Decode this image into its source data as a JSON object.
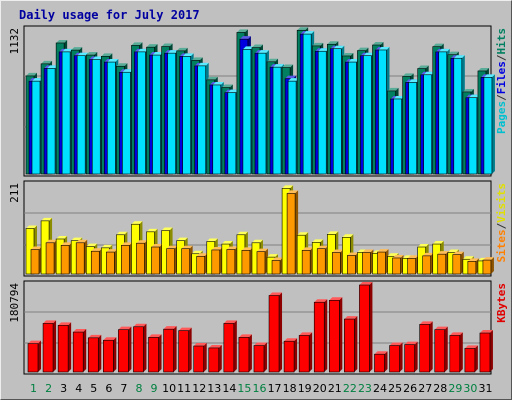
{
  "chart_data": [
    {
      "type": "bar",
      "title": "Daily usage for July 2017",
      "ymax_label": "1132",
      "axis_label_parts": [
        {
          "text": "Pages",
          "color": "#00C0D0"
        },
        {
          "text": "/",
          "color": "#333333"
        },
        {
          "text": "Files",
          "color": "#0000E0"
        },
        {
          "text": "/",
          "color": "#333333"
        },
        {
          "text": "Hits",
          "color": "#008060"
        }
      ],
      "ylim": [
        0,
        1132
      ],
      "series": [
        {
          "name": "Hits",
          "color": "#008060",
          "values": [
            771,
            866,
            1030,
            974,
            935,
            925,
            847,
            1011,
            997,
            1002,
            968,
            893,
            740,
            680,
            1113,
            994,
            882,
            837,
            1130,
            1007,
            1020,
            928,
            970,
            1014,
            653,
            767,
            829,
            1001,
            938,
            645,
            810
          ]
        },
        {
          "name": "Files",
          "color": "#0000E0",
          "values": [
            730,
            830,
            960,
            930,
            900,
            880,
            800,
            960,
            935,
            950,
            925,
            850,
            700,
            640,
            1060,
            950,
            840,
            750,
            1100,
            965,
            985,
            880,
            930,
            975,
            590,
            720,
            780,
            960,
            910,
            600,
            760
          ]
        },
        {
          "name": "Pages",
          "color": "#00E0FF",
          "values": [
            730,
            830,
            960,
            930,
            900,
            880,
            800,
            960,
            935,
            950,
            925,
            850,
            700,
            640,
            980,
            950,
            840,
            730,
            1100,
            965,
            985,
            880,
            930,
            975,
            590,
            720,
            780,
            960,
            910,
            600,
            760
          ]
        }
      ]
    },
    {
      "type": "bar",
      "ymax_label": "211",
      "axis_label_parts": [
        {
          "text": "Sites",
          "color": "#FF8000"
        },
        {
          "text": "/",
          "color": "#333333"
        },
        {
          "text": "Visits",
          "color": "#E0E000"
        }
      ],
      "ylim": [
        0,
        211
      ],
      "series": [
        {
          "name": "Visits",
          "color": "#FFFF00",
          "values": [
            108,
            126,
            83,
            79,
            65,
            62,
            93,
            118,
            100,
            103,
            79,
            48,
            77,
            71,
            93,
            74,
            40,
            203,
            92,
            75,
            94,
            87,
            51,
            49,
            42,
            37,
            64,
            71,
            51,
            35,
            31
          ]
        },
        {
          "name": "Sites",
          "color": "#FF9900",
          "values": [
            58,
            74,
            68,
            74,
            54,
            52,
            68,
            73,
            64,
            60,
            60,
            42,
            57,
            58,
            56,
            53,
            32,
            191,
            56,
            60,
            51,
            44,
            51,
            52,
            38,
            37,
            43,
            47,
            46,
            30,
            33
          ]
        }
      ]
    },
    {
      "type": "bar",
      "ymax_label": "180794",
      "axis_label_parts": [
        {
          "text": "KBytes",
          "color": "#E00000"
        }
      ],
      "ylim": [
        0,
        180794
      ],
      "series": [
        {
          "name": "KBytes",
          "color": "#FF0000",
          "values": [
            59000,
            101000,
            97000,
            83000,
            71000,
            66000,
            88000,
            94000,
            72000,
            89000,
            86000,
            54000,
            50000,
            101000,
            72000,
            55000,
            159000,
            64000,
            76000,
            145000,
            149000,
            110000,
            180794,
            37000,
            55000,
            57000,
            99000,
            88000,
            76000,
            49000,
            81000
          ]
        }
      ]
    }
  ],
  "x_axis": {
    "days": [
      "1",
      "2",
      "3",
      "4",
      "5",
      "6",
      "7",
      "8",
      "9",
      "10",
      "11",
      "12",
      "13",
      "14",
      "15",
      "16",
      "17",
      "18",
      "19",
      "20",
      "21",
      "22",
      "23",
      "24",
      "25",
      "26",
      "27",
      "28",
      "29",
      "30",
      "31"
    ],
    "weekend_days": [
      "1",
      "2",
      "8",
      "9",
      "15",
      "16",
      "22",
      "23",
      "29",
      "30"
    ],
    "weekday_color": "#000000",
    "weekend_color": "#008040"
  }
}
